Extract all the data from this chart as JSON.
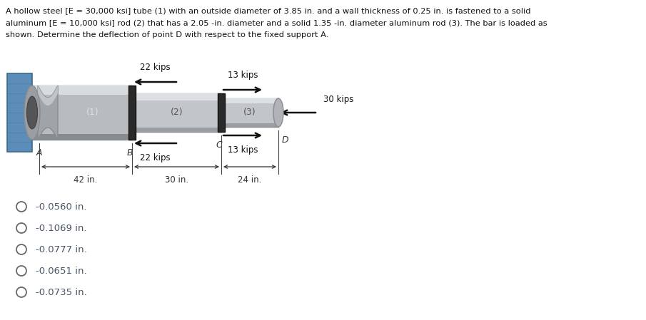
{
  "title_line1": "A hollow steel [E = 30,000 ksi] tube (1) with an outside diameter of 3.85 in. and a wall thickness of 0.25 in. is fastened to a solid",
  "title_line2": "aluminum [E = 10,000 ksi] rod (2) that has a 2.05 -in. diameter and a solid 1.35 -in. diameter aluminum rod (3). The bar is loaded as",
  "title_line3": "shown. Determine the deflection of point D with respect to the fixed support A.",
  "options": [
    "-0.0560 in.",
    "-0.1069 in.",
    "-0.0777 in.",
    "-0.0651 in.",
    "-0.0735 in."
  ],
  "bg_color": "#ffffff",
  "wall_color": "#5b8db8",
  "wall_dark": "#3a6a90",
  "rod_color": "#b8bcbf",
  "rod_light": "#d8dcdf",
  "rod_dark": "#888c8f",
  "collar_color": "#2a2a2a",
  "arrow_color": "#111111",
  "text_color": "#111111",
  "option_color": "#4a5568"
}
